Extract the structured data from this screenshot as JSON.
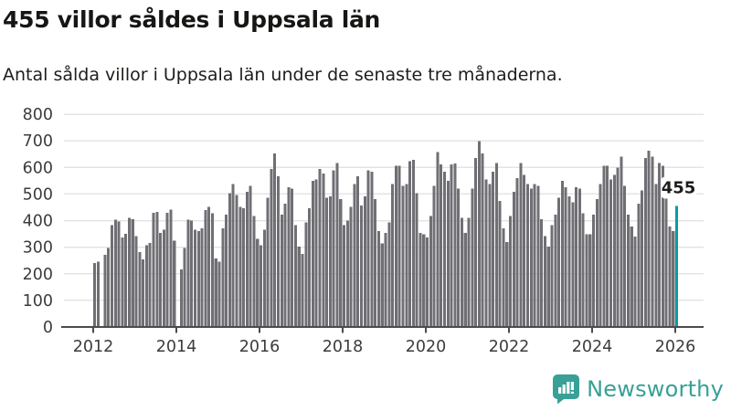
{
  "header": {
    "title": "455 villor såldes i Uppsala län",
    "subtitle": "Antal sålda villor i Uppsala län under de senaste tre månaderna."
  },
  "chart_data": {
    "type": "bar",
    "title": "455 villor såldes i Uppsala län",
    "subtitle": "Antal sålda villor i Uppsala län under de senaste tre månaderna.",
    "x_start": "2012-01",
    "x_freq": "monthly",
    "values": [
      240,
      245,
      null,
      272,
      297,
      383,
      403,
      397,
      337,
      350,
      411,
      405,
      342,
      282,
      254,
      308,
      316,
      430,
      433,
      354,
      365,
      430,
      442,
      325,
      null,
      216,
      297,
      403,
      400,
      365,
      360,
      371,
      440,
      451,
      428,
      257,
      245,
      371,
      423,
      503,
      537,
      497,
      451,
      446,
      509,
      531,
      417,
      331,
      308,
      365,
      486,
      594,
      652,
      566,
      423,
      463,
      526,
      520,
      383,
      302,
      274,
      394,
      446,
      549,
      554,
      594,
      577,
      486,
      491,
      589,
      617,
      480,
      383,
      400,
      451,
      537,
      566,
      457,
      491,
      589,
      583,
      480,
      360,
      314,
      354,
      394,
      537,
      606,
      606,
      531,
      537,
      623,
      629,
      503,
      354,
      348,
      337,
      417,
      530,
      658,
      612,
      583,
      549,
      612,
      614,
      520,
      411,
      354,
      411,
      520,
      635,
      698,
      652,
      554,
      537,
      583,
      617,
      474,
      371,
      320,
      417,
      509,
      560,
      617,
      571,
      537,
      520,
      537,
      531,
      405,
      342,
      302,
      383,
      423,
      486,
      549,
      526,
      491,
      469,
      526,
      520,
      428,
      348,
      348,
      423,
      480,
      537,
      606,
      606,
      554,
      571,
      600,
      640,
      531,
      423,
      377,
      340,
      463,
      514,
      635,
      663,
      640,
      537,
      617,
      606,
      531,
      377,
      360,
      455
    ],
    "highlight": {
      "index": 168,
      "value": 455,
      "label": "455"
    },
    "x_ticks": [
      2012,
      2014,
      2016,
      2018,
      2020,
      2022,
      2024,
      2026
    ],
    "y_ticks": [
      0,
      100,
      200,
      300,
      400,
      500,
      600,
      700,
      800
    ],
    "ylim": [
      0,
      800
    ],
    "xlabel": "",
    "ylabel": "",
    "grid": true,
    "legend": false,
    "bar_color": "#6f6f74",
    "highlight_color": "#00a0a0",
    "grid_color": "#e4e4e4",
    "axis_color": "#4b4b4b",
    "tick_label_color": "#3c3c3c",
    "callout_text_color": "#1d1d1d",
    "callout_bg": "#ffffff"
  },
  "footer": {
    "brand": "Newsworthy",
    "brand_color": "#38a096",
    "logo_icon": "bar-chart-speech-bubble"
  }
}
